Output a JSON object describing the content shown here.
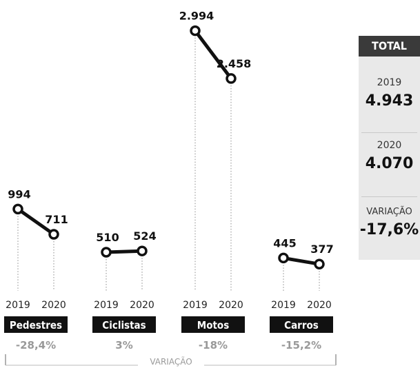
{
  "chart_data": {
    "type": "line",
    "years": [
      "2019",
      "2020"
    ],
    "groups": [
      {
        "name": "Pedestres",
        "values": [
          994,
          711
        ],
        "labels": [
          "994",
          "711"
        ],
        "change": "-28,4%"
      },
      {
        "name": "Ciclistas",
        "values": [
          510,
          524
        ],
        "labels": [
          "510",
          "524"
        ],
        "change": "3%"
      },
      {
        "name": "Motos",
        "values": [
          2994,
          2458
        ],
        "labels": [
          "2.994",
          "2.458"
        ],
        "change": "-18%"
      },
      {
        "name": "Carros",
        "values": [
          445,
          377
        ],
        "labels": [
          "445",
          "377"
        ],
        "change": "-15,2%"
      }
    ],
    "variation_label": "VARIAÇÃO"
  },
  "total": {
    "title": "TOTAL",
    "rows": [
      {
        "label": "2019",
        "value": "4.943"
      },
      {
        "label": "2020",
        "value": "4.070"
      },
      {
        "label": "VARIAÇÃO",
        "value": "-17,6%"
      }
    ]
  }
}
